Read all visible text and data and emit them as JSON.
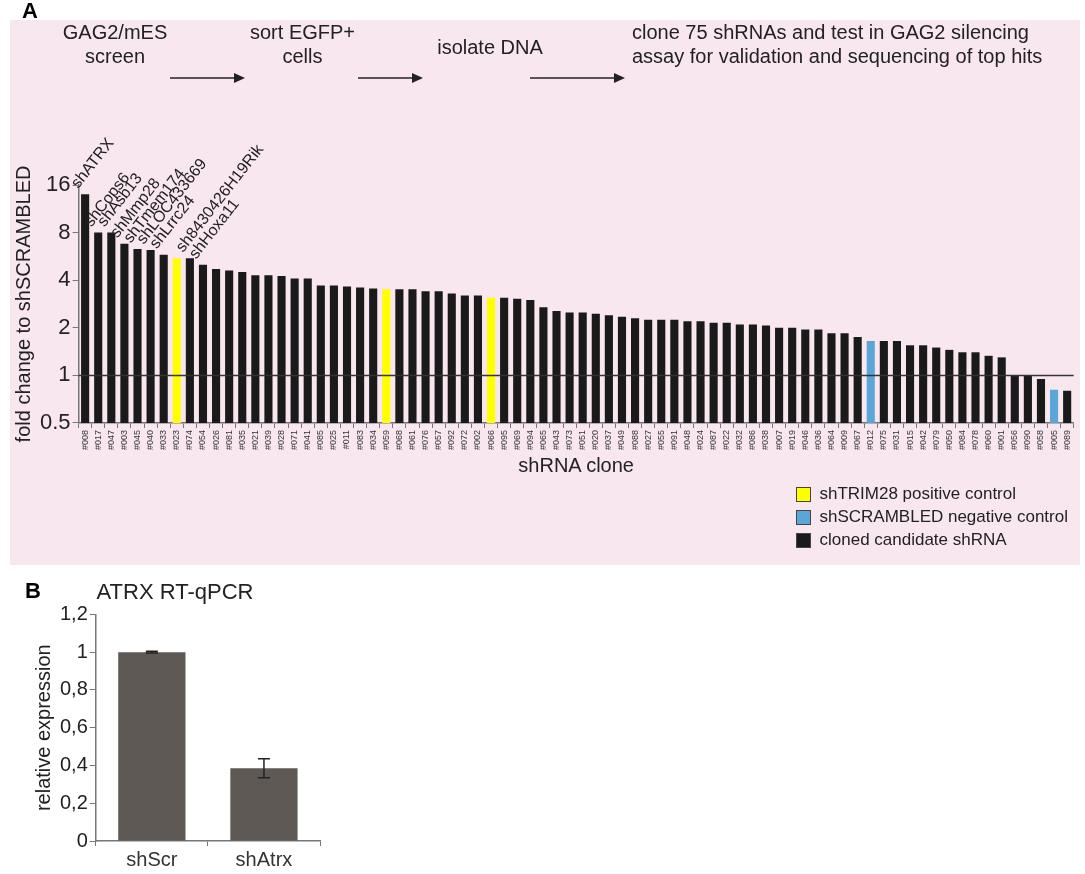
{
  "chart_data": [
    {
      "type": "bar",
      "xlabel": "shRNA clone",
      "ylabel": "fold change to shSCRAMBLED",
      "annotations": [
        "A",
        "GAG2/mES screen",
        "sort EGFP+ cells",
        "isolate DNA",
        "clone 75 shRNAs and test in GAG2 silencing assay for validation and sequencing of top hits",
        {
          "text": "shATRX",
          "x": "#008",
          "y": 14
        },
        {
          "text": "shCops6",
          "x": "#017",
          "y": 8
        },
        {
          "text": "shAsb13",
          "x": "#047",
          "y": 8
        },
        {
          "text": "shMmp28",
          "x": "#003",
          "y": 6.8
        },
        {
          "text": "shTmem174",
          "x": "#045",
          "y": 6.3
        },
        {
          "text": "shLOC433669",
          "x": "#040",
          "y": 6.2
        },
        {
          "text": "shLrrc24",
          "x": "#033",
          "y": 5.8
        },
        {
          "text": "sh8430426H19Rik",
          "x": "#074",
          "y": 5.5
        },
        {
          "text": "shHoxa11",
          "x": "#054",
          "y": 5.0
        }
      ],
      "categories": [
        "#008",
        "#017",
        "#047",
        "#003",
        "#045",
        "#040",
        "#033",
        "#023",
        "#074",
        "#054",
        "#026",
        "#081",
        "#035",
        "#021",
        "#039",
        "#028",
        "#071",
        "#041",
        "#085",
        "#025",
        "#011",
        "#083",
        "#034",
        "#059",
        "#068",
        "#061",
        "#076",
        "#057",
        "#092",
        "#072",
        "#002",
        "#066",
        "#095",
        "#069",
        "#094",
        "#065",
        "#043",
        "#073",
        "#051",
        "#020",
        "#037",
        "#049",
        "#088",
        "#027",
        "#055",
        "#091",
        "#048",
        "#024",
        "#087",
        "#022",
        "#032",
        "#086",
        "#038",
        "#007",
        "#019",
        "#046",
        "#036",
        "#064",
        "#009",
        "#067",
        "#012",
        "#075",
        "#031",
        "#015",
        "#042",
        "#079",
        "#050",
        "#084",
        "#078",
        "#060",
        "#001",
        "#056",
        "#090",
        "#058",
        "#005",
        "#089"
      ],
      "series": [
        {
          "name": "shTRIM28 positive control",
          "color": "#ffff00",
          "values": [
            null,
            null,
            null,
            null,
            null,
            null,
            null,
            5.5,
            null,
            null,
            null,
            null,
            null,
            null,
            null,
            null,
            null,
            null,
            null,
            null,
            null,
            null,
            null,
            3.5,
            null,
            null,
            null,
            null,
            null,
            null,
            null,
            3.1,
            null,
            null,
            null,
            null,
            null,
            null,
            null,
            null,
            null,
            null,
            null,
            null,
            null,
            null,
            null,
            null,
            null,
            null,
            null,
            null,
            null,
            null,
            null,
            null,
            null,
            null,
            null,
            null,
            null,
            null,
            null,
            null,
            null,
            null,
            null,
            null,
            null,
            null,
            null,
            null,
            null,
            null,
            null,
            null
          ]
        },
        {
          "name": "shSCRAMBLED negative control",
          "color": "#5aa6d8",
          "values": [
            null,
            null,
            null,
            null,
            null,
            null,
            null,
            null,
            null,
            null,
            null,
            null,
            null,
            null,
            null,
            null,
            null,
            null,
            null,
            null,
            null,
            null,
            null,
            null,
            null,
            null,
            null,
            null,
            null,
            null,
            null,
            null,
            null,
            null,
            null,
            null,
            null,
            null,
            null,
            null,
            null,
            null,
            null,
            null,
            null,
            null,
            null,
            null,
            null,
            null,
            null,
            null,
            null,
            null,
            null,
            null,
            null,
            null,
            null,
            null,
            1.65,
            null,
            null,
            null,
            null,
            null,
            null,
            null,
            null,
            null,
            null,
            null,
            null,
            null,
            0.81,
            null
          ]
        },
        {
          "name": "cloned candidate shRNA",
          "color": "#1a1a1a",
          "values": [
            14,
            8,
            8,
            6.8,
            6.3,
            6.2,
            5.8,
            null,
            5.5,
            5.0,
            4.7,
            4.6,
            4.5,
            4.3,
            4.3,
            4.25,
            4.1,
            4.1,
            3.7,
            3.7,
            3.65,
            3.6,
            3.55,
            null,
            3.5,
            3.5,
            3.4,
            3.4,
            3.3,
            3.2,
            3.2,
            null,
            3.1,
            3.05,
            3.0,
            2.7,
            2.55,
            2.5,
            2.5,
            2.45,
            2.4,
            2.35,
            2.3,
            2.25,
            2.25,
            2.25,
            2.2,
            2.2,
            2.15,
            2.15,
            2.1,
            2.1,
            2.07,
            2.0,
            2.0,
            1.95,
            1.95,
            1.85,
            1.85,
            1.75,
            null,
            1.65,
            1.65,
            1.55,
            1.55,
            1.5,
            1.45,
            1.4,
            1.4,
            1.33,
            1.3,
            1.0,
            1.0,
            0.95,
            null,
            0.8
          ]
        }
      ],
      "log": "y",
      "ylim": [
        0.5,
        16
      ],
      "yticks": [
        0.5,
        1,
        2,
        4,
        8,
        16
      ],
      "ref_lines": [
        {
          "axis": "y",
          "value": 1,
          "color": "#333333"
        }
      ],
      "legend": "bottom right",
      "grid": false
    },
    {
      "type": "bar",
      "title": "ATRX RT-qPCR",
      "ylabel": "relative expression",
      "annotations": [
        "B"
      ],
      "categories": [
        "shScr",
        "shAtrx"
      ],
      "values": [
        1.0,
        0.385
      ],
      "errors": [
        0.005,
        0.05
      ],
      "color": "#5f5955",
      "ylim": [
        0,
        1.2
      ],
      "yticks": [
        0,
        {
          "value": 0.2,
          "label": "0,2"
        },
        {
          "value": 0.4,
          "label": "0,4"
        },
        {
          "value": 0.6,
          "label": "0,6"
        },
        {
          "value": 0.8,
          "label": "0,8"
        },
        1,
        {
          "value": 1.2,
          "label": "1,2"
        }
      ],
      "grid": false
    }
  ]
}
